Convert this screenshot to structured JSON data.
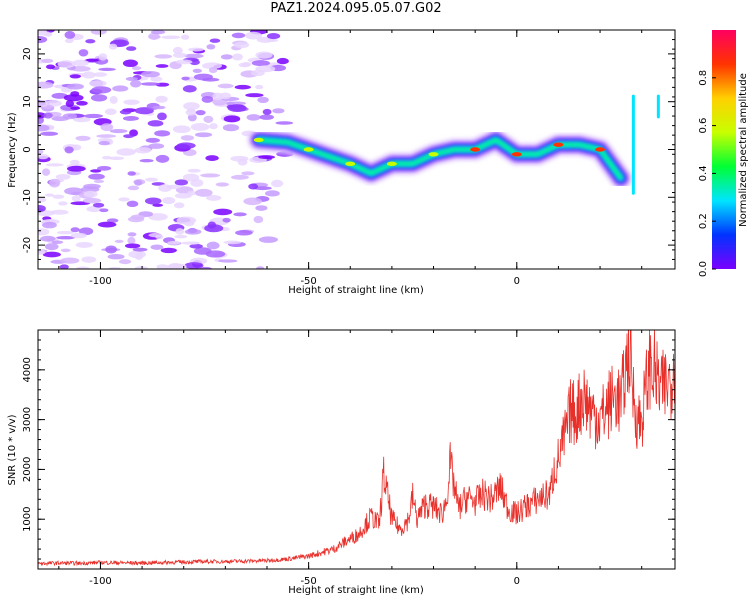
{
  "figure_title": "PAZ1.2024.095.05.07.G02",
  "colors": {
    "line": "#e8302b",
    "axis": "#000000",
    "spectrum_scale": [
      "#7a00ff",
      "#0033ff",
      "#00e5ff",
      "#00ff33",
      "#c8ff00",
      "#ffd000",
      "#ff3300",
      "#ff0060"
    ]
  },
  "chart_data": [
    {
      "type": "heatmap",
      "title": "",
      "xlabel": "Height of straight line (km)",
      "ylabel": "Frequency (Hz)",
      "xlim": [
        -115,
        38
      ],
      "ylim": [
        -25,
        25
      ],
      "x_ticks": [
        -100,
        -50,
        0
      ],
      "y_ticks": [
        -20,
        -10,
        0,
        10,
        20
      ],
      "colorbar": {
        "label": "Normalized spectral amplitude",
        "range": [
          0,
          1
        ],
        "ticks": [
          0.0,
          0.2,
          0.4,
          0.6,
          0.8
        ]
      },
      "ridge": {
        "description_points_x": [
          -62,
          -55,
          -50,
          -45,
          -40,
          -35,
          -30,
          -25,
          -20,
          -15,
          -10,
          -5,
          0,
          5,
          10,
          15,
          20,
          25
        ],
        "description_points_freq": [
          2,
          1.5,
          0,
          -1.5,
          -3,
          -5,
          -3,
          -3,
          -1,
          0,
          0,
          2,
          -1,
          -1,
          1,
          1,
          0,
          -6
        ]
      },
      "noise_region_x": [
        -115,
        -55
      ],
      "grid": false
    },
    {
      "type": "line",
      "title": "",
      "xlabel": "Height of straight line (km)",
      "ylabel": "SNR (10 * v/v)",
      "xlim": [
        -115,
        38
      ],
      "ylim": [
        0,
        4800
      ],
      "x_ticks": [
        -100,
        -50,
        0
      ],
      "y_ticks": [
        1000,
        2000,
        3000,
        4000
      ],
      "grid": false,
      "series": [
        {
          "x": [
            -115,
            -110,
            -105,
            -100,
            -95,
            -90,
            -85,
            -80,
            -75,
            -70,
            -65,
            -60,
            -55,
            -50,
            -47,
            -44,
            -41,
            -38,
            -35,
            -33,
            -32,
            -30,
            -28,
            -26,
            -25,
            -24,
            -22,
            -20,
            -18,
            -17,
            -16,
            -14,
            -12,
            -10,
            -8,
            -6,
            -4,
            -2,
            0,
            2,
            4,
            6,
            8,
            9,
            10,
            12,
            13,
            14,
            16,
            18,
            20,
            22,
            24,
            25,
            26,
            27,
            28,
            29,
            30,
            31,
            32,
            33,
            34,
            35,
            36,
            37,
            38
          ],
          "y": [
            110,
            120,
            115,
            130,
            125,
            120,
            130,
            140,
            150,
            150,
            160,
            170,
            200,
            260,
            330,
            400,
            560,
            700,
            1050,
            900,
            1900,
            1000,
            800,
            1000,
            1450,
            1000,
            1300,
            1250,
            1100,
            1350,
            2100,
            1200,
            1450,
            1350,
            1500,
            1400,
            1650,
            1200,
            1100,
            1250,
            1350,
            1450,
            1500,
            2000,
            2200,
            2800,
            3200,
            3100,
            3500,
            3150,
            3000,
            3300,
            3500,
            3300,
            3900,
            4500,
            3500,
            3000,
            3000,
            3600,
            4100,
            4000,
            3700,
            3600,
            3700,
            3800,
            4300
          ]
        }
      ]
    }
  ]
}
